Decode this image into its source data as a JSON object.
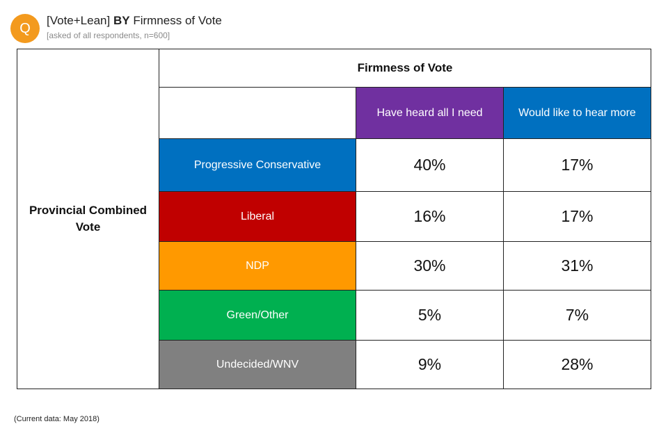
{
  "header": {
    "badge": "Q",
    "title_prefix": "[Vote+Lean]",
    "title_bold": "BY",
    "title_suffix": "Firmness of Vote",
    "subtitle": "[asked of all respondents, n=600]"
  },
  "footnote": "(Current data: May 2018)",
  "colors": {
    "badge": "#f39a1e",
    "have_heard": "#7030a0",
    "hear_more": "#0070c0",
    "pc": "#0070c0",
    "liberal": "#c00000",
    "ndp": "#ff9900",
    "green": "#00b050",
    "undecided": "#808080"
  },
  "chart_data": {
    "type": "table",
    "row_group_label": "Provincial Combined Vote",
    "column_group_label": "Firmness of Vote",
    "columns": [
      "Have heard all I need",
      "Would like to hear more"
    ],
    "rows": [
      {
        "label": "Progressive Conservative",
        "values": [
          "40%",
          "17%"
        ]
      },
      {
        "label": "Liberal",
        "values": [
          "16%",
          "17%"
        ]
      },
      {
        "label": "NDP",
        "values": [
          "30%",
          "31%"
        ]
      },
      {
        "label": "Green/Other",
        "values": [
          "5%",
          "7%"
        ]
      },
      {
        "label": "Undecided/WNV",
        "values": [
          "9%",
          "28%"
        ]
      }
    ]
  }
}
